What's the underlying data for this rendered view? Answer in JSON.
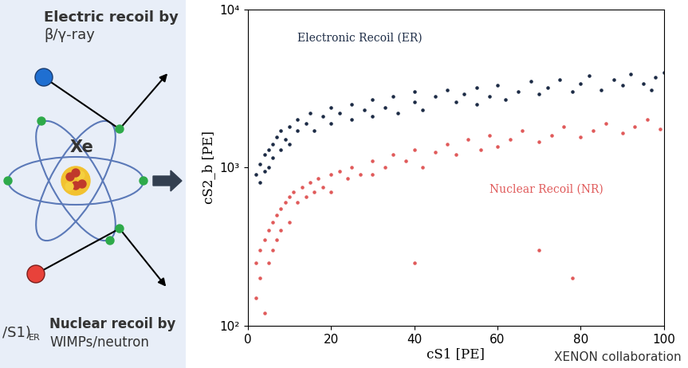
{
  "diagram": {
    "top_label": {
      "line1": "Electric recoil by",
      "line2": "β/γ-ray"
    },
    "atom_label": "Xe",
    "bottom_label": {
      "line1": "Nuclear recoil by",
      "line2": "WIMPs/neutron"
    },
    "left_fragment": {
      "text": "/S1)",
      "subscript": "ER"
    }
  },
  "credit": "XENON collaboration",
  "chart_data": {
    "type": "scatter",
    "x_label": "cS1 [PE]",
    "y_label": "cS2_b [PE]",
    "log": "y",
    "xlim": [
      0,
      100
    ],
    "xticks": [
      0,
      20,
      40,
      60,
      80,
      100
    ],
    "ylim": [
      100,
      10000
    ],
    "yticks": [
      {
        "value": 100,
        "label": "10²"
      },
      {
        "value": 1000,
        "label": "10³"
      },
      {
        "value": 10000,
        "label": "10⁴"
      }
    ],
    "marker": "o",
    "series": [
      {
        "name": "Electronic Recoil (ER)",
        "color": "#1c2b45",
        "x": [
          2,
          3,
          3,
          4,
          4,
          5,
          5,
          6,
          6,
          7,
          8,
          8,
          9,
          10,
          10,
          12,
          12,
          14,
          15,
          16,
          18,
          20,
          20,
          22,
          25,
          25,
          28,
          30,
          30,
          33,
          35,
          36,
          40,
          40,
          42,
          45,
          48,
          50,
          52,
          55,
          55,
          58,
          60,
          62,
          65,
          68,
          70,
          72,
          75,
          78,
          80,
          82,
          85,
          88,
          90,
          92,
          95,
          98,
          100,
          97
        ],
        "values": [
          900,
          1050,
          800,
          1200,
          950,
          1300,
          1000,
          1400,
          1150,
          1550,
          1300,
          1700,
          1500,
          1800,
          1400,
          1700,
          2000,
          1900,
          2200,
          1700,
          2100,
          2400,
          1900,
          2200,
          2500,
          2000,
          2300,
          2700,
          2100,
          2400,
          2800,
          2200,
          2600,
          3000,
          2300,
          2800,
          3100,
          2600,
          2900,
          3200,
          2500,
          2800,
          3300,
          2700,
          3000,
          3500,
          2900,
          3200,
          3600,
          3000,
          3400,
          3800,
          3100,
          3600,
          3300,
          3900,
          3400,
          3700,
          4000,
          3100
        ]
      },
      {
        "name": "Nuclear Recoil (NR)",
        "color": "#e05a5a",
        "x": [
          2,
          2,
          3,
          3,
          4,
          4,
          5,
          5,
          6,
          6,
          7,
          7,
          8,
          8,
          9,
          10,
          10,
          11,
          12,
          13,
          14,
          15,
          16,
          17,
          18,
          20,
          20,
          22,
          24,
          25,
          27,
          30,
          30,
          33,
          35,
          38,
          40,
          42,
          45,
          48,
          50,
          53,
          56,
          58,
          60,
          63,
          66,
          70,
          73,
          76,
          80,
          83,
          86,
          90,
          93,
          96,
          99,
          70,
          78,
          40
        ],
        "values": [
          250,
          150,
          300,
          200,
          350,
          120,
          400,
          250,
          450,
          300,
          500,
          350,
          550,
          400,
          600,
          650,
          450,
          700,
          600,
          750,
          650,
          800,
          700,
          850,
          750,
          900,
          700,
          950,
          850,
          1000,
          900,
          1100,
          900,
          1000,
          1200,
          1100,
          1300,
          1000,
          1250,
          1400,
          1200,
          1500,
          1300,
          1600,
          1350,
          1500,
          1700,
          1450,
          1600,
          1800,
          1550,
          1700,
          1900,
          1650,
          1800,
          2000,
          1750,
          300,
          200,
          250
        ]
      }
    ]
  }
}
